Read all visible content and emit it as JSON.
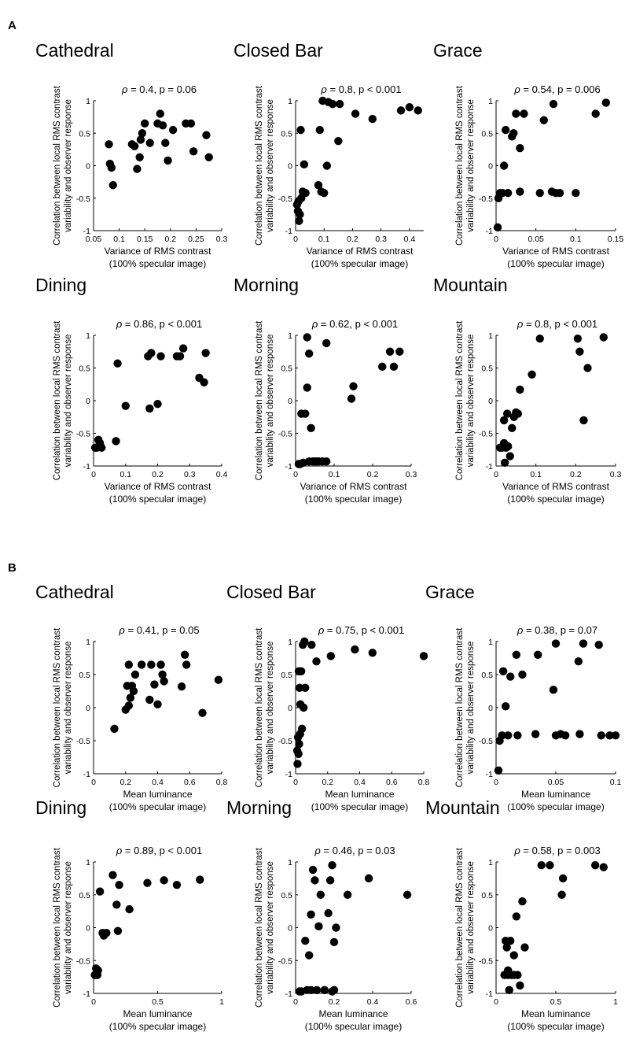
{
  "panel_labels": {
    "A": "A",
    "B": "B"
  },
  "axis_text": {
    "ylabel_line1": "Correlation between local RMS contrast",
    "ylabel_line2": "variability and observer response",
    "rho": "ρ"
  },
  "chart_data": [
    {
      "panel": "A",
      "title": "Cathedral",
      "type": "scatter",
      "stat": " = 0.4, p = 0.06",
      "xlabel_line1": "Variance of RMS contrast",
      "xlabel_line2": "(100% specular image)",
      "xlim": [
        0.05,
        0.3
      ],
      "ylim": [
        -1,
        1
      ],
      "xticks": [
        0.05,
        0.1,
        0.15,
        0.2,
        0.25,
        0.3
      ],
      "xtick_labels": [
        "0.05",
        "0.1",
        "0.15",
        "0.2",
        "0.25",
        "0.3"
      ],
      "yticks": [
        -1,
        -0.5,
        0,
        0.5,
        1
      ],
      "ytick_labels": [
        "-1",
        "-0.5",
        "0",
        "0.5",
        "1"
      ],
      "x": [
        0.08,
        0.082,
        0.085,
        0.088,
        0.125,
        0.13,
        0.135,
        0.14,
        0.142,
        0.145,
        0.15,
        0.16,
        0.175,
        0.18,
        0.185,
        0.19,
        0.195,
        0.205,
        0.23,
        0.24,
        0.245,
        0.27,
        0.275
      ],
      "y": [
        0.33,
        0.03,
        -0.03,
        -0.3,
        0.33,
        0.3,
        -0.05,
        0.13,
        0.4,
        0.5,
        0.65,
        0.35,
        0.65,
        0.8,
        0.62,
        0.35,
        0.08,
        0.55,
        0.65,
        0.65,
        0.22,
        0.47,
        0.13
      ]
    },
    {
      "panel": "A",
      "title": "Closed Bar",
      "type": "scatter",
      "stat": " = 0.8, p < 0.001",
      "xlabel_line1": "Variance of RMS contrast",
      "xlabel_line2": "(100% specular image)",
      "xlim": [
        0,
        0.45
      ],
      "ylim": [
        -1,
        1
      ],
      "xticks": [
        0,
        0.1,
        0.2,
        0.3,
        0.4
      ],
      "xtick_labels": [
        "0",
        "0.1",
        "0.2",
        "0.3",
        "0.4"
      ],
      "yticks": [
        -1,
        -0.5,
        0,
        0.5,
        1
      ],
      "ytick_labels": [
        "-1",
        "-0.5",
        "0",
        "0.5",
        "1"
      ],
      "x": [
        0.005,
        0.008,
        0.01,
        0.012,
        0.015,
        0.018,
        0.02,
        0.025,
        0.03,
        0.035,
        0.08,
        0.085,
        0.09,
        0.095,
        0.1,
        0.11,
        0.115,
        0.13,
        0.15,
        0.155,
        0.21,
        0.27,
        0.37,
        0.4,
        0.43
      ],
      "y": [
        -0.6,
        -0.7,
        -0.55,
        -0.85,
        -0.75,
        0.55,
        -0.5,
        -0.4,
        0.02,
        -0.42,
        -0.3,
        0.55,
        -0.4,
        1.0,
        -0.42,
        0.0,
        0.98,
        0.95,
        0.38,
        0.95,
        0.8,
        0.72,
        0.85,
        0.9,
        0.85
      ]
    },
    {
      "panel": "A",
      "title": "Grace",
      "type": "scatter",
      "stat": " = 0.54, p = 0.006",
      "xlabel_line1": "Variance of RMS contrast",
      "xlabel_line2": "(100% specular image)",
      "xlim": [
        0,
        0.15
      ],
      "ylim": [
        -1,
        1
      ],
      "xticks": [
        0,
        0.05,
        0.1,
        0.15
      ],
      "xtick_labels": [
        "0",
        "0.05",
        "0.1",
        "0.15"
      ],
      "yticks": [
        -1,
        -0.5,
        0,
        0.5,
        1
      ],
      "ytick_labels": [
        "-1",
        "-0.5",
        "0",
        "0.5",
        "1"
      ],
      "x": [
        0.002,
        0.003,
        0.005,
        0.008,
        0.01,
        0.012,
        0.015,
        0.02,
        0.022,
        0.025,
        0.03,
        0.03,
        0.035,
        0.055,
        0.06,
        0.07,
        0.072,
        0.075,
        0.08,
        0.1,
        0.125,
        0.138
      ],
      "y": [
        -0.95,
        -0.5,
        -0.42,
        -0.42,
        0.0,
        0.55,
        -0.42,
        0.45,
        0.5,
        0.8,
        -0.4,
        0.27,
        0.8,
        -0.42,
        0.7,
        -0.4,
        0.95,
        -0.42,
        -0.42,
        -0.42,
        0.8,
        0.97
      ]
    },
    {
      "panel": "A",
      "title": "Dining",
      "type": "scatter",
      "stat": " = 0.86, p < 0.001",
      "xlabel_line1": "Variance of RMS contrast",
      "xlabel_line2": "(100% specular image)",
      "xlim": [
        0,
        0.4
      ],
      "ylim": [
        -1,
        1
      ],
      "xticks": [
        0,
        0.1,
        0.2,
        0.3,
        0.4
      ],
      "xtick_labels": [
        "0",
        "0.1",
        "0.2",
        "0.3",
        "0.4"
      ],
      "yticks": [
        -1,
        -0.5,
        0,
        0.5,
        1
      ],
      "ytick_labels": [
        "-1",
        "-0.5",
        "0",
        "0.5",
        "1"
      ],
      "x": [
        0.005,
        0.01,
        0.015,
        0.02,
        0.025,
        0.07,
        0.075,
        0.1,
        0.17,
        0.175,
        0.18,
        0.2,
        0.21,
        0.26,
        0.27,
        0.28,
        0.33,
        0.345,
        0.35
      ],
      "y": [
        -0.72,
        -0.72,
        -0.6,
        -0.65,
        -0.72,
        -0.62,
        0.57,
        -0.08,
        0.68,
        -0.12,
        0.73,
        -0.05,
        0.68,
        0.68,
        0.68,
        0.8,
        0.35,
        0.28,
        0.73
      ]
    },
    {
      "panel": "A",
      "title": "Morning",
      "type": "scatter",
      "stat": " = 0.62, p < 0.001",
      "xlabel_line1": "Variance of RMS contrast",
      "xlabel_line2": "(100% specular image)",
      "xlim": [
        0,
        0.3
      ],
      "ylim": [
        -1,
        1
      ],
      "xticks": [
        0,
        0.1,
        0.2,
        0.3
      ],
      "xtick_labels": [
        "0",
        "0.1",
        "0.2",
        "0.3"
      ],
      "yticks": [
        -1,
        -0.5,
        0,
        0.5,
        1
      ],
      "ytick_labels": [
        "-1",
        "-0.5",
        "0",
        "0.5",
        "1"
      ],
      "x": [
        0.008,
        0.012,
        0.015,
        0.02,
        0.025,
        0.03,
        0.03,
        0.035,
        0.035,
        0.04,
        0.045,
        0.05,
        0.055,
        0.06,
        0.07,
        0.08,
        0.08,
        0.145,
        0.15,
        0.225,
        0.245,
        0.255,
        0.27
      ],
      "y": [
        -0.97,
        -0.97,
        -0.2,
        -0.95,
        -0.2,
        0.2,
        0.97,
        -0.93,
        0.72,
        -0.42,
        -0.93,
        -0.93,
        -0.93,
        -0.93,
        -0.93,
        0.88,
        -0.93,
        0.03,
        0.22,
        0.52,
        0.75,
        0.52,
        0.75
      ]
    },
    {
      "panel": "A",
      "title": "Mountain",
      "type": "scatter",
      "stat": " = 0.8, p < 0.001",
      "xlabel_line1": "Variance of RMS contrast",
      "xlabel_line2": "(100% specular image)",
      "xlim": [
        0,
        0.3
      ],
      "ylim": [
        -1,
        1
      ],
      "xticks": [
        0,
        0.1,
        0.2,
        0.3
      ],
      "xtick_labels": [
        "0",
        "0.1",
        "0.2",
        "0.3"
      ],
      "yticks": [
        -1,
        -0.5,
        0,
        0.5,
        1
      ],
      "ytick_labels": [
        "-1",
        "-0.5",
        "0",
        "0.5",
        "1"
      ],
      "x": [
        0.01,
        0.015,
        0.02,
        0.02,
        0.022,
        0.025,
        0.028,
        0.03,
        0.035,
        0.04,
        0.045,
        0.05,
        0.055,
        0.06,
        0.09,
        0.11,
        0.205,
        0.21,
        0.22,
        0.23,
        0.27
      ],
      "y": [
        -0.72,
        -0.72,
        -0.3,
        -0.65,
        -0.95,
        -0.72,
        -0.2,
        -0.7,
        -0.85,
        -0.42,
        -0.25,
        -0.18,
        -0.2,
        0.17,
        0.4,
        0.95,
        0.95,
        0.75,
        -0.3,
        0.5,
        0.97
      ]
    },
    {
      "panel": "B",
      "title": "Cathedral",
      "type": "scatter",
      "stat": " = 0.41, p = 0.05",
      "xlabel_line1": "Mean luminance",
      "xlabel_line2": "(100% specular image)",
      "xlim": [
        0,
        0.8
      ],
      "ylim": [
        -1,
        1
      ],
      "xticks": [
        0,
        0.2,
        0.4,
        0.6,
        0.8
      ],
      "xtick_labels": [
        "0",
        "0.2",
        "0.4",
        "0.6",
        "0.8"
      ],
      "yticks": [
        -1,
        -0.5,
        0,
        0.5,
        1
      ],
      "ytick_labels": [
        "-1",
        "-0.5",
        "0",
        "0.5",
        "1"
      ],
      "x": [
        0.13,
        0.2,
        0.21,
        0.22,
        0.22,
        0.23,
        0.24,
        0.25,
        0.26,
        0.3,
        0.35,
        0.36,
        0.38,
        0.4,
        0.42,
        0.43,
        0.44,
        0.55,
        0.57,
        0.58,
        0.68,
        0.78
      ],
      "y": [
        -0.32,
        -0.03,
        0.33,
        0.65,
        0.03,
        0.15,
        0.33,
        0.25,
        0.5,
        0.65,
        0.12,
        0.65,
        0.35,
        0.05,
        0.65,
        0.5,
        0.4,
        0.32,
        0.8,
        0.65,
        -0.08,
        0.42
      ]
    },
    {
      "panel": "B",
      "title": "Closed Bar",
      "type": "scatter",
      "stat": " = 0.75, p < 0.001",
      "xlabel_line1": "Mean luminance",
      "xlabel_line2": "(100% specular image)",
      "xlim": [
        0,
        0.8
      ],
      "ylim": [
        -1,
        1
      ],
      "xticks": [
        0,
        0.2,
        0.4,
        0.6,
        0.8
      ],
      "xtick_labels": [
        "0",
        "0.2",
        "0.4",
        "0.6",
        "0.8"
      ],
      "yticks": [
        -1,
        -0.5,
        0,
        0.5,
        1
      ],
      "ytick_labels": [
        "-1",
        "-0.5",
        "0",
        "0.5",
        "1"
      ],
      "x": [
        0.01,
        0.012,
        0.015,
        0.018,
        0.02,
        0.022,
        0.025,
        0.028,
        0.03,
        0.035,
        0.04,
        0.045,
        0.05,
        0.055,
        0.06,
        0.1,
        0.13,
        0.22,
        0.37,
        0.48,
        0.8
      ],
      "y": [
        -0.65,
        -0.85,
        -0.45,
        -0.7,
        0.55,
        -0.55,
        0.3,
        -0.4,
        0.05,
        0.55,
        -0.32,
        0.95,
        0.0,
        1.0,
        0.3,
        0.95,
        0.7,
        0.78,
        0.88,
        0.83,
        0.78
      ]
    },
    {
      "panel": "B",
      "title": "Grace",
      "type": "scatter",
      "stat": " = 0.38, p = 0.07",
      "xlabel_line1": "Mean luminance",
      "xlabel_line2": "(100% specular image)",
      "xlim": [
        0,
        0.1
      ],
      "ylim": [
        -1,
        1
      ],
      "xticks": [
        0,
        0.05,
        0.1
      ],
      "xtick_labels": [
        "0",
        "0.05",
        "0.1"
      ],
      "yticks": [
        -1,
        -0.5,
        0,
        0.5,
        1
      ],
      "ytick_labels": [
        "-1",
        "-0.5",
        "0",
        "0.5",
        "1"
      ],
      "x": [
        0.002,
        0.003,
        0.005,
        0.006,
        0.008,
        0.01,
        0.012,
        0.017,
        0.018,
        0.022,
        0.033,
        0.035,
        0.048,
        0.05,
        0.05,
        0.054,
        0.058,
        0.069,
        0.07,
        0.073,
        0.086,
        0.088,
        0.095,
        0.1
      ],
      "y": [
        -0.95,
        -0.5,
        -0.42,
        0.55,
        0.02,
        -0.42,
        0.47,
        0.8,
        -0.42,
        0.5,
        -0.4,
        0.8,
        0.27,
        -0.42,
        0.97,
        -0.4,
        -0.42,
        0.7,
        -0.4,
        0.97,
        0.95,
        -0.42,
        -0.42,
        -0.42
      ]
    },
    {
      "panel": "B",
      "title": "Dining",
      "type": "scatter",
      "stat": " = 0.89, p < 0.001",
      "xlabel_line1": "Mean luminance",
      "xlabel_line2": "(100% specular image)",
      "xlim": [
        0,
        1
      ],
      "ylim": [
        -1,
        1
      ],
      "xticks": [
        0,
        0.5,
        1
      ],
      "xtick_labels": [
        "0",
        "0.5",
        "1"
      ],
      "yticks": [
        -1,
        -0.5,
        0,
        0.5,
        1
      ],
      "ytick_labels": [
        "-1",
        "-0.5",
        "0",
        "0.5",
        "1"
      ],
      "x": [
        0.01,
        0.02,
        0.03,
        0.035,
        0.05,
        0.07,
        0.08,
        0.1,
        0.15,
        0.18,
        0.19,
        0.2,
        0.28,
        0.42,
        0.55,
        0.65,
        0.83
      ],
      "y": [
        -0.72,
        -0.62,
        -0.72,
        -0.65,
        0.55,
        -0.08,
        -0.12,
        -0.08,
        0.8,
        0.35,
        -0.05,
        0.65,
        0.28,
        0.68,
        0.72,
        0.65,
        0.73
      ]
    },
    {
      "panel": "B",
      "title": "Morning",
      "type": "scatter",
      "stat": " = 0.46, p = 0.03",
      "xlabel_line1": "Mean luminance",
      "xlabel_line2": "(100% specular image)",
      "xlim": [
        0,
        0.6
      ],
      "ylim": [
        -1,
        1
      ],
      "xticks": [
        0,
        0.2,
        0.4,
        0.6
      ],
      "xtick_labels": [
        "0",
        "0.2",
        "0.4",
        "0.6"
      ],
      "yticks": [
        -1,
        -0.5,
        0,
        0.5,
        1
      ],
      "ytick_labels": [
        "-1",
        "-0.5",
        "0",
        "0.5",
        "1"
      ],
      "x": [
        0.02,
        0.03,
        0.05,
        0.06,
        0.07,
        0.08,
        0.08,
        0.09,
        0.1,
        0.11,
        0.12,
        0.13,
        0.15,
        0.17,
        0.18,
        0.19,
        0.19,
        0.2,
        0.2,
        0.21,
        0.27,
        0.38,
        0.58
      ],
      "y": [
        -0.97,
        -0.97,
        -0.2,
        -0.95,
        -0.42,
        0.2,
        -0.95,
        0.88,
        0.72,
        -0.95,
        0.02,
        0.5,
        -0.95,
        0.22,
        0.72,
        -0.97,
        0.95,
        -0.22,
        -0.95,
        0.0,
        0.5,
        0.75,
        0.5
      ]
    },
    {
      "panel": "B",
      "title": "Mountain",
      "type": "scatter",
      "stat": " = 0.58, p = 0.003",
      "xlabel_line1": "Mean luminance",
      "xlabel_line2": "(100% specular image)",
      "xlim": [
        0,
        1
      ],
      "ylim": [
        -1,
        1
      ],
      "xticks": [
        0,
        0.5,
        1
      ],
      "xtick_labels": [
        "0",
        "0.5",
        "1"
      ],
      "yticks": [
        -1,
        -0.5,
        0,
        0.5,
        1
      ],
      "ytick_labels": [
        "-1",
        "-0.5",
        "0",
        "0.5",
        "1"
      ],
      "x": [
        0.07,
        0.08,
        0.09,
        0.1,
        0.1,
        0.11,
        0.12,
        0.13,
        0.15,
        0.15,
        0.17,
        0.18,
        0.2,
        0.22,
        0.24,
        0.38,
        0.45,
        0.55,
        0.56,
        0.83,
        0.9
      ],
      "y": [
        -0.72,
        -0.2,
        -0.3,
        -0.65,
        -0.72,
        -0.95,
        -0.2,
        -0.72,
        -0.42,
        -0.72,
        0.17,
        -0.72,
        -0.88,
        0.4,
        -0.3,
        0.95,
        0.95,
        0.5,
        0.75,
        0.95,
        0.92
      ]
    }
  ]
}
